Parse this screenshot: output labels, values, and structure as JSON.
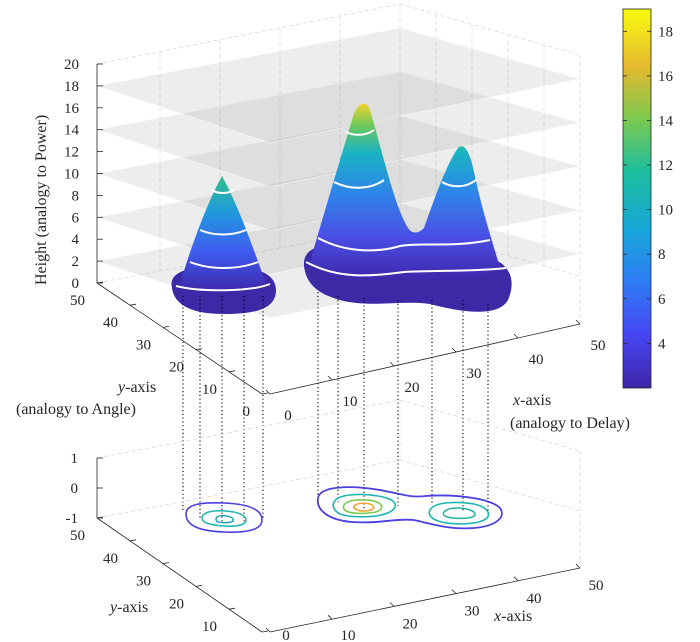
{
  "chart_data": [
    {
      "type": "surface",
      "name": "3D surface with contour slices",
      "zlabel": "Height (analogy to Power)",
      "xlabel_var": "x",
      "xlabel_rest": "-axis",
      "xlabel_sub": "(analogy to Delay)",
      "ylabel_var": "y",
      "ylabel_rest": "-axis",
      "ylabel_sub": "(analogy to Angle)",
      "xlim": [
        0,
        50
      ],
      "ylim": [
        0,
        50
      ],
      "zlim": [
        0,
        20
      ],
      "xticks": [
        "0",
        "10",
        "20",
        "30",
        "40",
        "50"
      ],
      "yticks": [
        "0",
        "10",
        "20",
        "30",
        "40",
        "50"
      ],
      "zticks": [
        "0",
        "2",
        "4",
        "6",
        "8",
        "10",
        "12",
        "14",
        "16",
        "18",
        "20"
      ],
      "slice_planes_z": [
        2,
        6,
        10,
        14,
        18
      ],
      "peaks": [
        {
          "x": 8,
          "y": 12,
          "height": 9.5
        },
        {
          "x": 21,
          "y": 26,
          "height": 16
        },
        {
          "x": 33,
          "y": 23,
          "height": 12
        }
      ],
      "contour_levels_z": [
        1,
        4,
        8,
        12
      ]
    },
    {
      "type": "contour",
      "name": "projected contour plane",
      "xlabel_var": "x",
      "xlabel_rest": "-axis",
      "ylabel_var": "y",
      "ylabel_rest": "-axis",
      "xlim": [
        0,
        50
      ],
      "ylim": [
        0,
        50
      ],
      "zlim": [
        -1,
        1
      ],
      "xticks": [
        "0",
        "10",
        "20",
        "30",
        "40",
        "50"
      ],
      "yticks": [
        "0",
        "10",
        "20",
        "30",
        "40",
        "50"
      ],
      "zticks": [
        "-1",
        "0",
        "1"
      ]
    },
    {
      "type": "colorbar",
      "colormap": "parula",
      "clim": [
        2,
        19
      ],
      "ticks": [
        "4",
        "6",
        "8",
        "10",
        "12",
        "14",
        "16",
        "18"
      ]
    }
  ]
}
